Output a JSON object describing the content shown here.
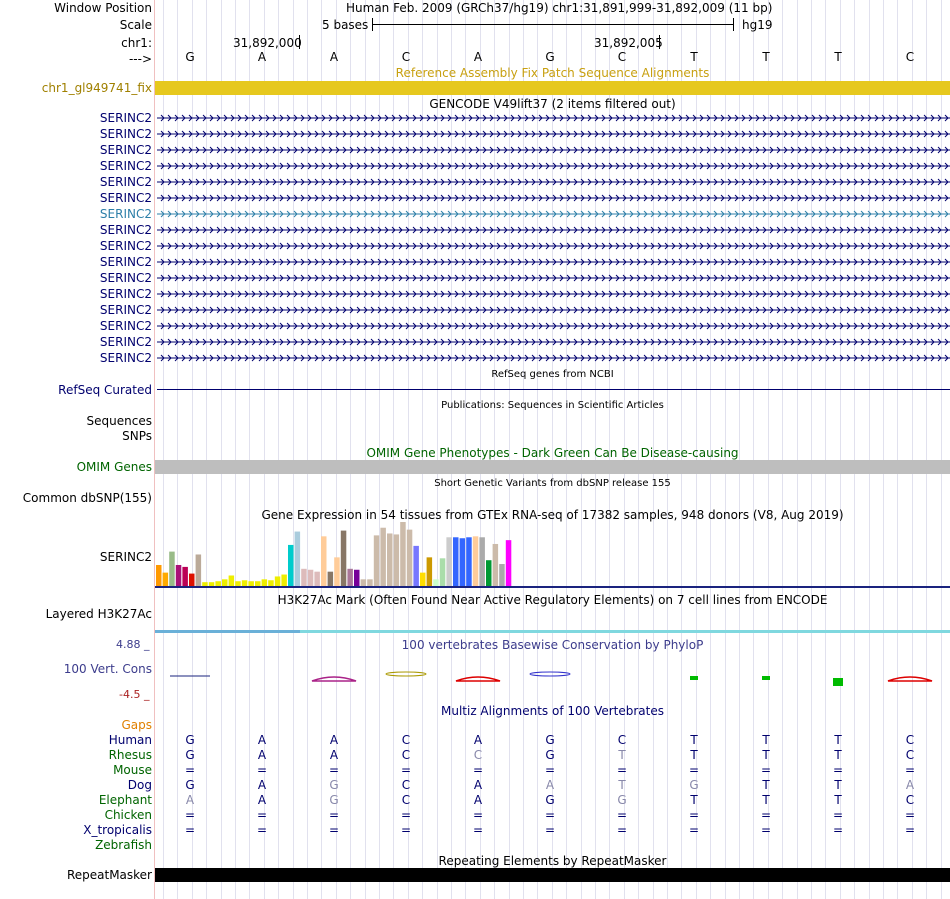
{
  "header": {
    "window_position_label": "Window Position",
    "scale_label": "Scale",
    "chrom_label": "chr1:",
    "strand_label": "--->",
    "assembly_text": "Human Feb. 2009 (GRCh37/hg19)   chr1:31,891,999-31,892,009 (11 bp)",
    "scale_text": "5 bases",
    "scale_db": "hg19",
    "pos_left": "31,892,000",
    "pos_right": "31,892,005",
    "bases": [
      "G",
      "A",
      "A",
      "C",
      "A",
      "G",
      "C",
      "T",
      "T",
      "T",
      "C"
    ]
  },
  "fix_patch": {
    "title": "Reference Assembly Fix Patch Sequence Alignments",
    "label": "chr1_gl949741_fix",
    "color": "#e6c81e"
  },
  "gencode": {
    "title": "GENCODE V49lift37 (2 items filtered out)",
    "genes": [
      "SERINC2",
      "SERINC2",
      "SERINC2",
      "SERINC2",
      "SERINC2",
      "SERINC2",
      "SERINC2",
      "SERINC2",
      "SERINC2",
      "SERINC2",
      "SERINC2",
      "SERINC2",
      "SERINC2",
      "SERINC2",
      "SERINC2",
      "SERINC2"
    ],
    "highlight_index": 6,
    "color": "#00006e",
    "highlight_color": "#2d7fa8"
  },
  "refseq": {
    "title": "RefSeq genes from NCBI",
    "label": "RefSeq Curated"
  },
  "publications": {
    "title": "Publications: Sequences in Scientific Articles",
    "labels": [
      "Sequences",
      "SNPs"
    ]
  },
  "omim": {
    "title": "OMIM Gene Phenotypes - Dark Green Can Be Disease-causing",
    "label": "OMIM Genes",
    "color": "#bebebe"
  },
  "dbsnp": {
    "title": "Short Genetic Variants from dbSNP release 155",
    "label": "Common dbSNP(155)"
  },
  "gtex": {
    "title": "Gene Expression in 54 tissues from GTEx RNA-seq of 17382 samples, 948 donors (V8, Aug 2019)",
    "label": "SERINC2"
  },
  "chart_data": {
    "type": "bar",
    "title": "Gene Expression in 54 tissues from GTEx RNA-seq of 17382 samples, 948 donors (V8, Aug 2019)",
    "xlabel": "",
    "ylabel": "",
    "values": [
      22,
      14,
      36,
      22,
      20,
      13,
      33,
      4,
      4,
      5,
      7,
      11,
      5,
      6,
      5,
      5,
      7,
      6,
      10,
      12,
      43,
      57,
      18,
      17,
      15,
      52,
      15,
      30,
      58,
      18,
      17,
      7,
      7,
      53,
      61,
      55,
      54,
      67,
      59,
      42,
      14,
      30,
      7,
      29,
      51,
      51,
      50,
      51,
      52,
      51,
      27,
      44,
      23,
      48
    ],
    "colors": [
      "#ff9900",
      "#ffaa00",
      "#99bb88",
      "#aa1177",
      "#bb0055",
      "#dd1100",
      "#bbaa99",
      "#eeee00",
      "#eeee00",
      "#eeee00",
      "#eeee00",
      "#eeee00",
      "#eeee00",
      "#eeee00",
      "#eeee00",
      "#eeee00",
      "#eeee00",
      "#eeee00",
      "#eeee00",
      "#eeee00",
      "#00cccc",
      "#aaccdd",
      "#ddbbbb",
      "#ddbbbb",
      "#ddbbbb",
      "#ffcc99",
      "#887766",
      "#ffcc99",
      "#887766",
      "#aa7799",
      "#770099",
      "#ccbbaa",
      "#ccbbaa",
      "#ccbbaa",
      "#ccbbaa",
      "#ccbbaa",
      "#ccbbaa",
      "#ccbbaa",
      "#ccbbaa",
      "#7777ff",
      "#ffdd00",
      "#cc9900",
      "#ccffcc",
      "#aaddaa",
      "#cccccc",
      "#3366ff",
      "#3366ff",
      "#3366ff",
      "#ffcc99",
      "#aaaaaa",
      "#009933",
      "#ccbbaa",
      "#aaaaaa",
      "#ff00ff"
    ]
  },
  "h3k27ac": {
    "title": "H3K27Ac Mark (Often Found Near Active Regulatory Elements) on 7 cell lines from ENCODE",
    "label": "Layered H3K27Ac"
  },
  "phylop": {
    "title": "100 vertebrates Basewise Conservation by PhyloP",
    "label": "100 Vert. Cons",
    "max": "4.88 _",
    "min": "-4.5 _"
  },
  "multiz": {
    "title": "Multiz Alignments of 100 Vertebrates",
    "species": [
      {
        "name": "Human",
        "color": "#00006e",
        "bases": [
          "G",
          "A",
          "A",
          "C",
          "A",
          "G",
          "C",
          "T",
          "T",
          "T",
          "C"
        ]
      },
      {
        "name": "Rhesus",
        "color": "#006400",
        "bases": [
          "G",
          "A",
          "A",
          "C",
          "C",
          "G",
          "T",
          "T",
          "T",
          "T",
          "C"
        ]
      },
      {
        "name": "Mouse",
        "color": "#006400",
        "bases": [
          "=",
          "=",
          "=",
          "=",
          "=",
          "=",
          "=",
          "=",
          "=",
          "=",
          "="
        ]
      },
      {
        "name": "Dog",
        "color": "#00006e",
        "bases": [
          "G",
          "A",
          "G",
          "C",
          "A",
          "A",
          "T",
          "G",
          "T",
          "T",
          "A"
        ]
      },
      {
        "name": "Elephant",
        "color": "#006400",
        "bases": [
          "A",
          "A",
          "G",
          "C",
          "A",
          "G",
          "G",
          "T",
          "T",
          "T",
          "C"
        ]
      },
      {
        "name": "Chicken",
        "color": "#006400",
        "bases": [
          "=",
          "=",
          "=",
          "=",
          "=",
          "=",
          "=",
          "=",
          "=",
          "=",
          "="
        ]
      },
      {
        "name": "X_tropicalis",
        "color": "#00006e",
        "bases": [
          "=",
          "=",
          "=",
          "=",
          "=",
          "=",
          "=",
          "=",
          "=",
          "=",
          "="
        ]
      },
      {
        "name": "Zebrafish",
        "color": "#006400",
        "bases": [
          "",
          "",
          "",
          "",
          "",
          "",
          "",
          "",
          "",
          "",
          ""
        ]
      }
    ]
  },
  "repeatmasker": {
    "title": "Repeating Elements by RepeatMasker",
    "label": "RepeatMasker"
  }
}
